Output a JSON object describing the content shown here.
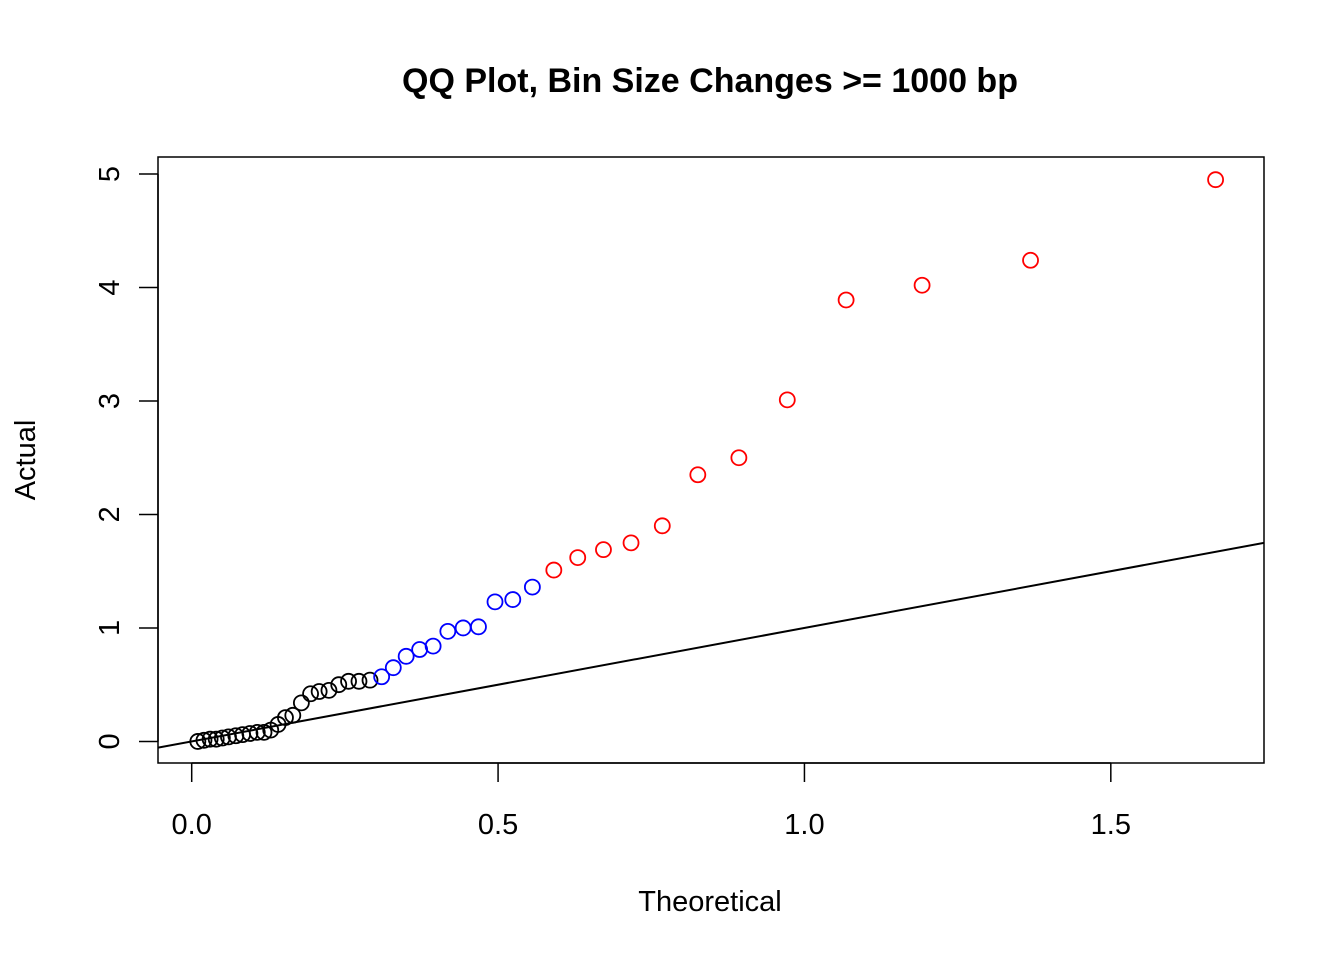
{
  "chart_data": {
    "type": "scatter",
    "title": "QQ Plot, Bin Size Changes >= 1000 bp",
    "xlabel": "Theoretical",
    "ylabel": "Actual",
    "xlim": [
      -0.055,
      1.75
    ],
    "ylim": [
      -0.19,
      5.15
    ],
    "x_ticks": [
      0.0,
      0.5,
      1.0,
      1.5
    ],
    "x_tick_labels": [
      "0.0",
      "0.5",
      "1.0",
      "1.5"
    ],
    "y_ticks": [
      0,
      1,
      2,
      3,
      4,
      5
    ],
    "y_tick_labels": [
      "0",
      "1",
      "2",
      "3",
      "4",
      "5"
    ],
    "grid": false,
    "legend": false,
    "reference_line": {
      "intercept": 0,
      "slope": 1,
      "color": "#000000"
    },
    "series": [
      {
        "color": "#000000",
        "marker": "open-circle",
        "points": [
          {
            "x": 0.01,
            "y": 0.0
          },
          {
            "x": 0.02,
            "y": 0.01
          },
          {
            "x": 0.03,
            "y": 0.02
          },
          {
            "x": 0.04,
            "y": 0.02
          },
          {
            "x": 0.05,
            "y": 0.03
          },
          {
            "x": 0.06,
            "y": 0.04
          },
          {
            "x": 0.072,
            "y": 0.05
          },
          {
            "x": 0.083,
            "y": 0.06
          },
          {
            "x": 0.095,
            "y": 0.07
          },
          {
            "x": 0.107,
            "y": 0.08
          },
          {
            "x": 0.118,
            "y": 0.08
          },
          {
            "x": 0.129,
            "y": 0.1
          },
          {
            "x": 0.141,
            "y": 0.15
          },
          {
            "x": 0.153,
            "y": 0.21
          },
          {
            "x": 0.165,
            "y": 0.23
          },
          {
            "x": 0.179,
            "y": 0.34
          },
          {
            "x": 0.194,
            "y": 0.42
          },
          {
            "x": 0.208,
            "y": 0.44
          },
          {
            "x": 0.224,
            "y": 0.45
          },
          {
            "x": 0.24,
            "y": 0.5
          },
          {
            "x": 0.256,
            "y": 0.53
          },
          {
            "x": 0.273,
            "y": 0.53
          },
          {
            "x": 0.291,
            "y": 0.54
          }
        ]
      },
      {
        "color": "#0000ff",
        "marker": "open-circle",
        "points": [
          {
            "x": 0.31,
            "y": 0.57
          },
          {
            "x": 0.329,
            "y": 0.65
          },
          {
            "x": 0.35,
            "y": 0.75
          },
          {
            "x": 0.372,
            "y": 0.81
          },
          {
            "x": 0.394,
            "y": 0.84
          },
          {
            "x": 0.418,
            "y": 0.97
          },
          {
            "x": 0.443,
            "y": 1.0
          },
          {
            "x": 0.468,
            "y": 1.01
          },
          {
            "x": 0.495,
            "y": 1.23
          },
          {
            "x": 0.524,
            "y": 1.25
          },
          {
            "x": 0.556,
            "y": 1.36
          }
        ]
      },
      {
        "color": "#ff0000",
        "marker": "open-circle",
        "points": [
          {
            "x": 0.591,
            "y": 1.51
          },
          {
            "x": 0.63,
            "y": 1.62
          },
          {
            "x": 0.672,
            "y": 1.69
          },
          {
            "x": 0.717,
            "y": 1.75
          },
          {
            "x": 0.768,
            "y": 1.9
          },
          {
            "x": 0.826,
            "y": 2.35
          },
          {
            "x": 0.893,
            "y": 2.5
          },
          {
            "x": 0.972,
            "y": 3.01
          },
          {
            "x": 1.068,
            "y": 3.89
          },
          {
            "x": 1.192,
            "y": 4.02
          },
          {
            "x": 1.369,
            "y": 4.24
          },
          {
            "x": 1.671,
            "y": 4.95
          }
        ]
      }
    ]
  }
}
